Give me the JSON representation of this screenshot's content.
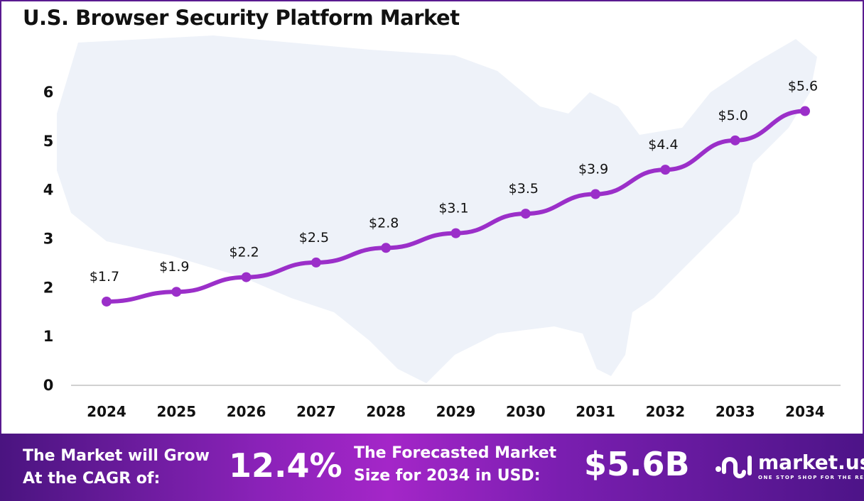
{
  "title": "U.S. Browser Security Platform Market",
  "chart_data": {
    "type": "line",
    "title": "U.S. Browser Security Platform Market",
    "xlabel": "",
    "ylabel": "",
    "categories": [
      "2024",
      "2025",
      "2026",
      "2027",
      "2028",
      "2029",
      "2030",
      "2031",
      "2032",
      "2033",
      "2034"
    ],
    "values": [
      1.7,
      1.9,
      2.2,
      2.5,
      2.8,
      3.1,
      3.5,
      3.9,
      4.4,
      5.0,
      5.6
    ],
    "data_labels": [
      "$1.7",
      "$1.9",
      "$2.2",
      "$2.5",
      "$2.8",
      "$3.1",
      "$3.5",
      "$3.9",
      "$4.4",
      "$5.0",
      "$5.6"
    ],
    "y_ticks": [
      "0",
      "1",
      "2",
      "3",
      "4",
      "5",
      "6"
    ],
    "ylim": [
      0,
      6
    ],
    "grid": false,
    "legend": "none",
    "line_color": "#9b2fc9",
    "background_image": "us-map-silhouette"
  },
  "footer": {
    "cagr_label_line1": "The Market will Grow",
    "cagr_label_line2": "At the CAGR of:",
    "cagr_value": "12.4%",
    "forecast_label_line1": "The Forecasted Market",
    "forecast_label_line2": "Size for 2034 in USD:",
    "forecast_value": "$5.6B",
    "logo_name": "market.us",
    "logo_tagline": "ONE STOP SHOP FOR THE REPORTS"
  }
}
